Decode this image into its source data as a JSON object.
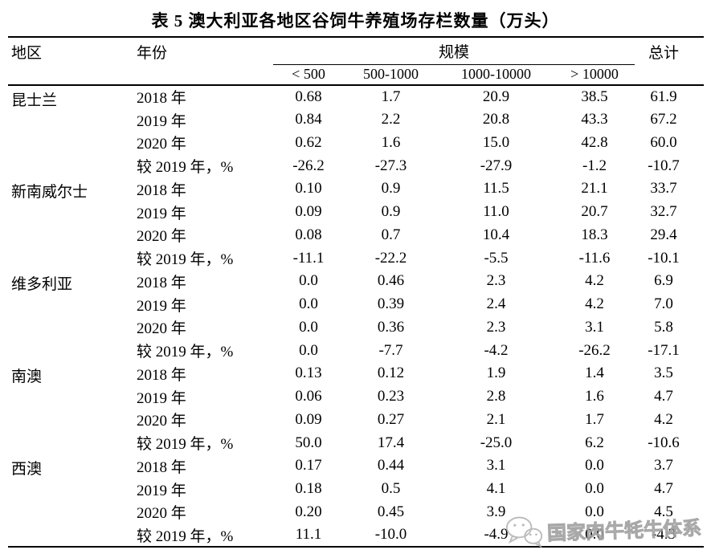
{
  "page": {
    "background_color": "#ffffff",
    "text_color": "#000000"
  },
  "title": "表 5 澳大利亚各地区谷饲牛养殖场存栏数量（万头）",
  "table": {
    "header": {
      "region": "地区",
      "year": "年份",
      "scale": "规模",
      "total": "总计",
      "scale_cols": [
        "< 500",
        "500-1000",
        "1000-10000",
        "> 10000"
      ]
    },
    "groups": [
      {
        "region": "昆士兰",
        "rows": [
          {
            "year": "2018 年",
            "values": [
              "0.68",
              "1.7",
              "20.9",
              "38.5",
              "61.9"
            ]
          },
          {
            "year": "2019 年",
            "values": [
              "0.84",
              "2.2",
              "20.8",
              "43.3",
              "67.2"
            ]
          },
          {
            "year": "2020 年",
            "values": [
              "0.62",
              "1.6",
              "15.0",
              "42.8",
              "60.0"
            ]
          },
          {
            "year": "较 2019 年，%",
            "values": [
              "-26.2",
              "-27.3",
              "-27.9",
              "-1.2",
              "-10.7"
            ]
          }
        ]
      },
      {
        "region": "新南威尔士",
        "rows": [
          {
            "year": "2018 年",
            "values": [
              "0.10",
              "0.9",
              "11.5",
              "21.1",
              "33.7"
            ]
          },
          {
            "year": "2019 年",
            "values": [
              "0.09",
              "0.9",
              "11.0",
              "20.7",
              "32.7"
            ]
          },
          {
            "year": "2020 年",
            "values": [
              "0.08",
              "0.7",
              "10.4",
              "18.3",
              "29.4"
            ]
          },
          {
            "year": "较 2019 年，%",
            "values": [
              "-11.1",
              "-22.2",
              "-5.5",
              "-11.6",
              "-10.1"
            ]
          }
        ]
      },
      {
        "region": "维多利亚",
        "rows": [
          {
            "year": "2018 年",
            "values": [
              "0.0",
              "0.46",
              "2.3",
              "4.2",
              "6.9"
            ]
          },
          {
            "year": "2019 年",
            "values": [
              "0.0",
              "0.39",
              "2.4",
              "4.2",
              "7.0"
            ]
          },
          {
            "year": "2020 年",
            "values": [
              "0.0",
              "0.36",
              "2.3",
              "3.1",
              "5.8"
            ]
          },
          {
            "year": "较 2019 年，%",
            "values": [
              "0.0",
              "-7.7",
              "-4.2",
              "-26.2",
              "-17.1"
            ]
          }
        ]
      },
      {
        "region": "南澳",
        "rows": [
          {
            "year": "2018 年",
            "values": [
              "0.13",
              "0.12",
              "1.9",
              "1.4",
              "3.5"
            ]
          },
          {
            "year": "2019 年",
            "values": [
              "0.06",
              "0.23",
              "2.8",
              "1.6",
              "4.7"
            ]
          },
          {
            "year": "2020 年",
            "values": [
              "0.09",
              "0.27",
              "2.1",
              "1.7",
              "4.2"
            ]
          },
          {
            "year": "较 2019 年，%",
            "values": [
              "50.0",
              "17.4",
              "-25.0",
              "6.2",
              "-10.6"
            ]
          }
        ]
      },
      {
        "region": "西澳",
        "rows": [
          {
            "year": "2018 年",
            "values": [
              "0.17",
              "0.44",
              "3.1",
              "0.0",
              "3.7"
            ]
          },
          {
            "year": "2019 年",
            "values": [
              "0.18",
              "0.5",
              "4.1",
              "0.0",
              "4.7"
            ]
          },
          {
            "year": "2020 年",
            "values": [
              "0.20",
              "0.45",
              "3.9",
              "0.0",
              "4.5"
            ]
          },
          {
            "year": "较 2019 年，%",
            "values": [
              "11.1",
              "-10.0",
              "-4.9",
              "0.0",
              "-4.3"
            ]
          }
        ]
      }
    ]
  },
  "watermark": {
    "icon": "wechat-icon",
    "text": "国家肉牛牦牛体系",
    "color": "#a6a6a6"
  }
}
